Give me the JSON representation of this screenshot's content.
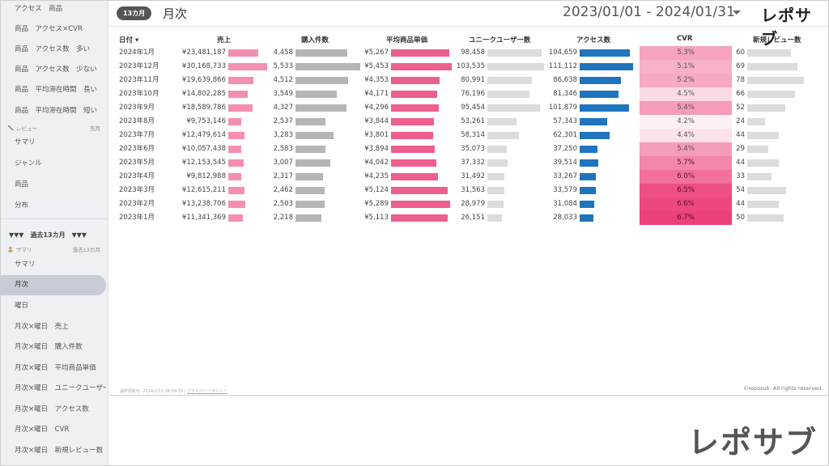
{
  "sidebar": {
    "top_items": [
      "アクセス　商品",
      "商品　アクセス×CVR",
      "商品　アクセス数　多い",
      "商品　アクセス数　少ない",
      "商品　平均滞在時間　長い",
      "商品　平均滞在時間　短い"
    ],
    "section_review": {
      "label": "レビュー",
      "right": "先月"
    },
    "review_items": [
      "サマリ",
      "ジャンル",
      "商品",
      "分布"
    ],
    "group_header": "▼▼▼　過去13カ月　▼▼▼",
    "section_summary": {
      "label": "サマリ",
      "right": "過去13カ月"
    },
    "bottom_items": [
      "サマリ",
      "月次",
      "曜日",
      "月次×曜日　売上",
      "月次×曜日　購入件数",
      "月次×曜日　平均商品単価",
      "月次×曜日　ユニークユーザー数",
      "月次×曜日　アクセス数",
      "月次×曜日　CVR",
      "月次×曜日　新規レビュー数"
    ],
    "active_item": "月次"
  },
  "header": {
    "badge": "13カ月",
    "title": "月次",
    "date_range": "2023/01/01 - 2024/01/31",
    "logo": "レポサブ"
  },
  "table": {
    "columns": [
      "日付 ▾",
      "売上",
      "購入件数",
      "平均商品単価",
      "ユニークユーザー数",
      "アクセス数",
      "CVR",
      "新規レビュー数"
    ],
    "rows": [
      {
        "date": "2024年1月",
        "sales": "¥23,481,187",
        "purchases": "4,458",
        "avg_price": "¥5,267",
        "users": "98,458",
        "access": "104,659",
        "cvr": "5.3%",
        "reviews": "60"
      },
      {
        "date": "2023年12月",
        "sales": "¥30,168,733",
        "purchases": "5,533",
        "avg_price": "¥5,453",
        "users": "103,535",
        "access": "111,112",
        "cvr": "5.1%",
        "reviews": "69"
      },
      {
        "date": "2023年11月",
        "sales": "¥19,639,866",
        "purchases": "4,512",
        "avg_price": "¥4,353",
        "users": "80,991",
        "access": "86,638",
        "cvr": "5.2%",
        "reviews": "78"
      },
      {
        "date": "2023年10月",
        "sales": "¥14,802,285",
        "purchases": "3,549",
        "avg_price": "¥4,171",
        "users": "76,196",
        "access": "81,346",
        "cvr": "4.5%",
        "reviews": "66"
      },
      {
        "date": "2023年9月",
        "sales": "¥18,589,786",
        "purchases": "4,327",
        "avg_price": "¥4,296",
        "users": "95,454",
        "access": "101,879",
        "cvr": "5.4%",
        "reviews": "52"
      },
      {
        "date": "2023年8月",
        "sales": "¥9,753,146",
        "purchases": "2,537",
        "avg_price": "¥3,844",
        "users": "53,261",
        "access": "57,343",
        "cvr": "4.2%",
        "reviews": "24"
      },
      {
        "date": "2023年7月",
        "sales": "¥12,479,614",
        "purchases": "3,283",
        "avg_price": "¥3,801",
        "users": "58,314",
        "access": "62,301",
        "cvr": "4.4%",
        "reviews": "44"
      },
      {
        "date": "2023年6月",
        "sales": "¥10,057,438",
        "purchases": "2,583",
        "avg_price": "¥3,894",
        "users": "35,073",
        "access": "37,250",
        "cvr": "5.4%",
        "reviews": "29"
      },
      {
        "date": "2023年5月",
        "sales": "¥12,153,545",
        "purchases": "3,007",
        "avg_price": "¥4,042",
        "users": "37,332",
        "access": "39,514",
        "cvr": "5.7%",
        "reviews": "44"
      },
      {
        "date": "2023年4月",
        "sales": "¥9,812,988",
        "purchases": "2,317",
        "avg_price": "¥4,235",
        "users": "31,492",
        "access": "33,267",
        "cvr": "6.0%",
        "reviews": "33"
      },
      {
        "date": "2023年3月",
        "sales": "¥12,615,211",
        "purchases": "2,462",
        "avg_price": "¥5,124",
        "users": "31,563",
        "access": "33,579",
        "cvr": "6.5%",
        "reviews": "54"
      },
      {
        "date": "2023年2月",
        "sales": "¥13,238,706",
        "purchases": "2,503",
        "avg_price": "¥5,289",
        "users": "28,979",
        "access": "31,084",
        "cvr": "6.6%",
        "reviews": "44"
      },
      {
        "date": "2023年1月",
        "sales": "¥11,341,369",
        "purchases": "2,218",
        "avg_price": "¥5,113",
        "users": "26,151",
        "access": "28,033",
        "cvr": "6.7%",
        "reviews": "50"
      }
    ]
  },
  "colors": {
    "sales_bar": "#f48fb1",
    "purchases_bar": "#b5b5b5",
    "avg_price_bar": "#ec5f8e",
    "users_bar": "#dcdcdc",
    "access_bar": "#1f75bd",
    "reviews_bar": "#dcdcdc"
  },
  "footer": {
    "updated": "最終更新日: 2024/2/13 18:38:31",
    "privacy": "プライバシーポリシー",
    "copyright": "©reposub. All rights reserved."
  },
  "brand_logo": "レポサブ"
}
